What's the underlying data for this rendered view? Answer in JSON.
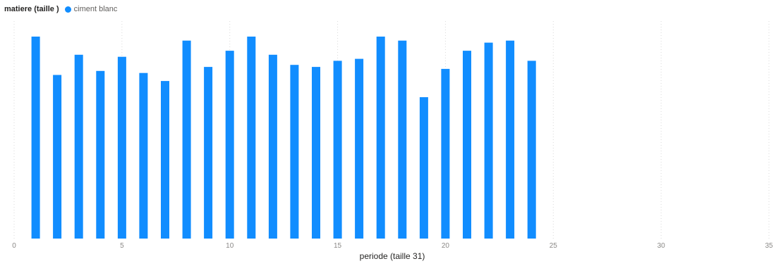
{
  "legend": {
    "title": "matiere  (taille )"
  },
  "colors": {
    "series": "#118dff",
    "grid": "#d9d9d9",
    "tick": "#8a8886"
  },
  "chart_data": {
    "type": "bar",
    "title": "",
    "xlabel": "periode (taille 31)",
    "ylabel": "",
    "xlim": [
      0,
      35
    ],
    "ylim": [
      0,
      100
    ],
    "x_ticks": [
      "0",
      "5",
      "10",
      "15",
      "20",
      "25",
      "30",
      "35"
    ],
    "grid": "vertical dotted",
    "legend_position": "top-left",
    "x": [
      1,
      2,
      3,
      4,
      5,
      6,
      7,
      8,
      9,
      10,
      11,
      12,
      13,
      14,
      15,
      16,
      17,
      18,
      19,
      20,
      21,
      22,
      23,
      24
    ],
    "series": [
      {
        "name": "ciment blanc",
        "color": "#118dff",
        "values": [
          100,
          81,
          91,
          83,
          90,
          82,
          78,
          98,
          85,
          93,
          100,
          91,
          86,
          85,
          88,
          89,
          100,
          98,
          70,
          84,
          93,
          97,
          98,
          88
        ]
      }
    ]
  }
}
